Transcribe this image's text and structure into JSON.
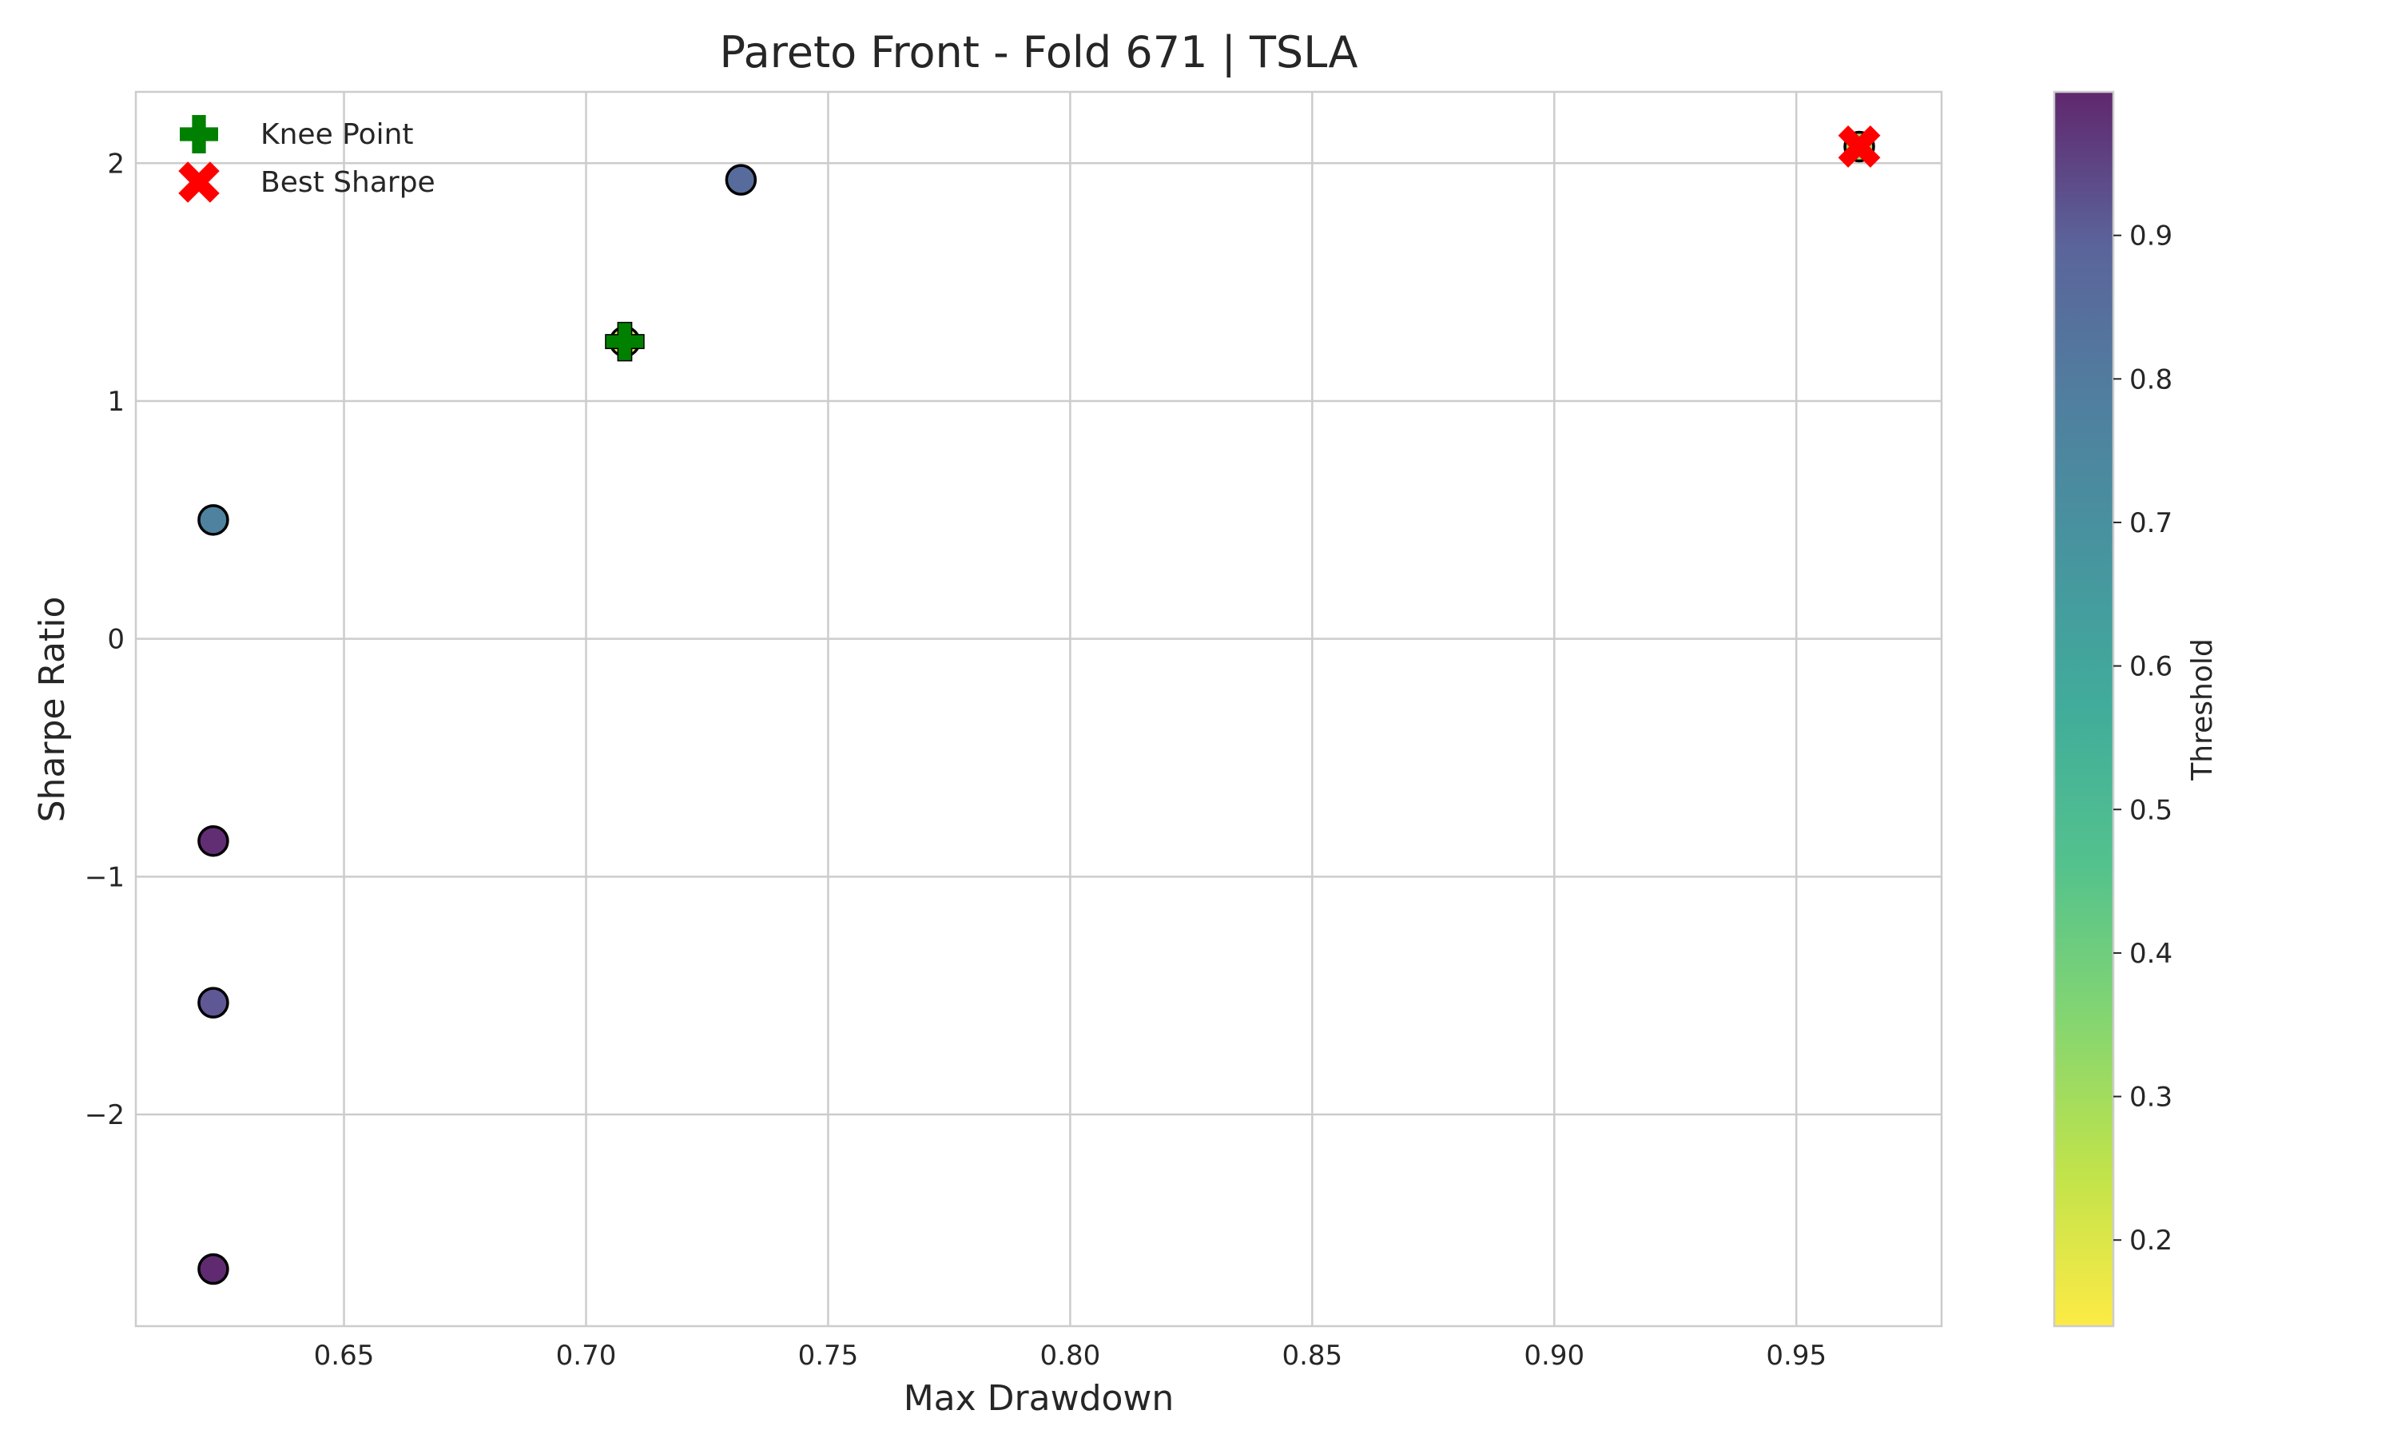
{
  "chart_data": {
    "type": "scatter",
    "title": "Pareto Front - Fold 671 | TSLA",
    "xlabel": "Max Drawdown",
    "ylabel": "Sharpe Ratio",
    "xlim": [
      0.607,
      0.98
    ],
    "ylim": [
      -2.89,
      2.3
    ],
    "xticks": [
      0.65,
      0.7,
      0.75,
      0.8,
      0.85,
      0.9,
      0.95
    ],
    "xtick_labels": [
      "0.65",
      "0.70",
      "0.75",
      "0.80",
      "0.85",
      "0.90",
      "0.95"
    ],
    "yticks": [
      -2,
      -1,
      0,
      1,
      2
    ],
    "ytick_labels": [
      "−2",
      "−1",
      "0",
      "1",
      "2"
    ],
    "grid": true,
    "legend_position": "top-left",
    "colormap": "viridis",
    "colorbar": {
      "label": "Threshold",
      "range": [
        0.14,
        1.0
      ],
      "ticks": [
        0.2,
        0.3,
        0.4,
        0.5,
        0.6,
        0.7,
        0.8,
        0.9
      ],
      "tick_labels": [
        "0.2",
        "0.3",
        "0.4",
        "0.5",
        "0.6",
        "0.7",
        "0.8",
        "0.9"
      ]
    },
    "points": [
      {
        "x": 0.623,
        "y": 0.5,
        "threshold": 0.7
      },
      {
        "x": 0.623,
        "y": -0.85,
        "threshold": 0.98
      },
      {
        "x": 0.623,
        "y": -1.53,
        "threshold": 0.85
      },
      {
        "x": 0.623,
        "y": -2.65,
        "threshold": 0.99
      },
      {
        "x": 0.708,
        "y": 1.25,
        "threshold": 0.15
      },
      {
        "x": 0.732,
        "y": 1.93,
        "threshold": 0.78
      },
      {
        "x": 0.963,
        "y": 2.07,
        "threshold": 0.3
      }
    ],
    "knee_point": {
      "name": "Knee Point",
      "x": 0.708,
      "y": 1.25,
      "color": "#008000"
    },
    "best_sharpe": {
      "name": "Best Sharpe",
      "x": 0.963,
      "y": 2.07,
      "color": "#ff0000"
    }
  }
}
